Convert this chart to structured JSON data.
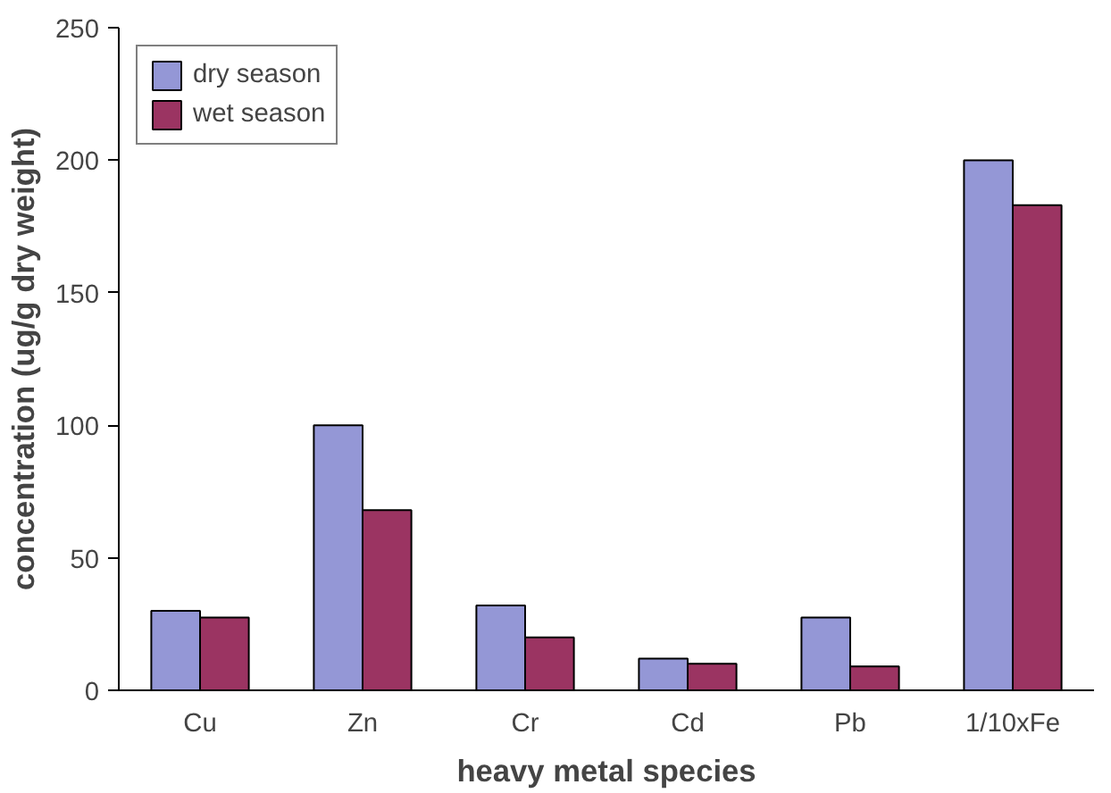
{
  "chart_data": {
    "type": "bar",
    "xlabel": "heavy metal species",
    "ylabel": "concentration (ug/g dry weight)",
    "categories": [
      "Cu",
      "Zn",
      "Cr",
      "Cd",
      "Pb",
      "1/10xFe"
    ],
    "series": [
      {
        "name": "dry season",
        "color": "#9497d6",
        "values": [
          30,
          100,
          32,
          12,
          27.5,
          200
        ]
      },
      {
        "name": "wet season",
        "color": "#9b3462",
        "values": [
          27.5,
          68,
          20,
          10,
          9,
          183
        ]
      }
    ],
    "ylim": [
      0,
      250
    ],
    "yticks": [
      0,
      50,
      100,
      150,
      200,
      250
    ],
    "grid": false,
    "legend": "top left"
  }
}
